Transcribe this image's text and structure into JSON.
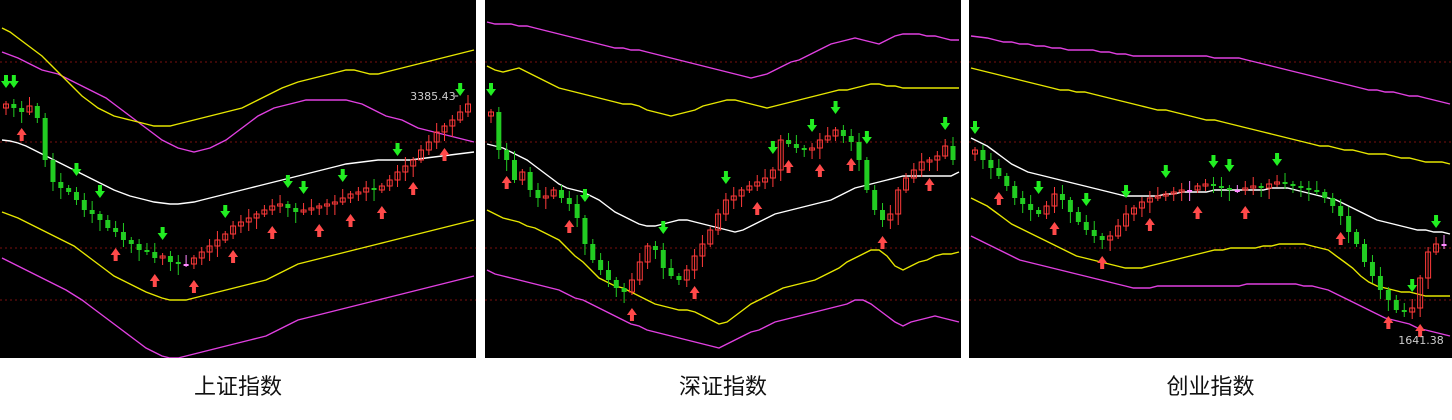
{
  "colors": {
    "background": "#000000",
    "outer_band": "#e040e0",
    "inner_band": "#e6e600",
    "middle_line": "#ffffff",
    "grid": "#7a1010",
    "candle_up": "#ff3a3a",
    "candle_down": "#22cc22",
    "candle_doji": "#ff88ff",
    "buy_arrow": "#ff4a4a",
    "sell_arrow": "#22ee22",
    "annotation": "#cccccc"
  },
  "icons": {
    "buy_signal": "up-arrow-icon",
    "sell_signal": "down-arrow-icon"
  },
  "chart_data": [
    {
      "type": "candlestick",
      "caption": "上证指数",
      "annotation": {
        "text": "3385.43",
        "index": 58
      },
      "inner_upper": [
        28,
        32,
        38,
        44,
        50,
        56,
        64,
        72,
        80,
        88,
        96,
        102,
        108,
        112,
        116,
        118,
        120,
        122,
        124,
        126,
        126,
        126,
        124,
        122,
        120,
        118,
        116,
        114,
        112,
        110,
        108,
        104,
        100,
        96,
        92,
        88,
        85,
        82,
        80,
        78,
        76,
        74,
        72,
        70,
        70,
        72,
        74,
        74,
        72,
        70,
        68,
        66,
        64,
        62,
        60,
        58,
        56,
        54,
        52,
        50
      ],
      "outer_upper": [
        52,
        55,
        58,
        62,
        66,
        70,
        72,
        74,
        78,
        82,
        86,
        90,
        94,
        98,
        104,
        110,
        116,
        122,
        128,
        134,
        140,
        144,
        148,
        150,
        152,
        150,
        148,
        144,
        140,
        134,
        128,
        122,
        116,
        112,
        108,
        106,
        104,
        102,
        100,
        100,
        100,
        100,
        100,
        100,
        102,
        104,
        108,
        112,
        116,
        118,
        120,
        124,
        128,
        130,
        132,
        134,
        136,
        138,
        140,
        142
      ],
      "middle": [
        140,
        141,
        143,
        146,
        150,
        154,
        158,
        162,
        166,
        170,
        174,
        178,
        182,
        186,
        190,
        193,
        196,
        198,
        200,
        202,
        203,
        204,
        204,
        203,
        202,
        200,
        198,
        196,
        194,
        192,
        190,
        188,
        186,
        184,
        182,
        180,
        178,
        176,
        174,
        172,
        170,
        168,
        166,
        164,
        163,
        162,
        161,
        160,
        160,
        160,
        160,
        160,
        159,
        158,
        157,
        156,
        155,
        154,
        153,
        152
      ],
      "inner_lower": [
        212,
        215,
        218,
        222,
        226,
        230,
        234,
        238,
        242,
        246,
        252,
        258,
        264,
        270,
        276,
        280,
        284,
        288,
        292,
        295,
        298,
        300,
        300,
        300,
        298,
        296,
        294,
        292,
        290,
        288,
        286,
        284,
        282,
        280,
        276,
        272,
        268,
        264,
        262,
        260,
        258,
        256,
        254,
        252,
        250,
        248,
        246,
        244,
        242,
        240,
        238,
        236,
        234,
        232,
        230,
        228,
        226,
        224,
        222,
        220
      ],
      "outer_lower": [
        258,
        262,
        266,
        270,
        274,
        278,
        282,
        286,
        290,
        295,
        300,
        306,
        312,
        318,
        324,
        330,
        336,
        342,
        348,
        352,
        356,
        358,
        358,
        356,
        354,
        352,
        350,
        348,
        346,
        344,
        342,
        340,
        338,
        336,
        332,
        328,
        324,
        320,
        318,
        316,
        314,
        312,
        310,
        308,
        306,
        304,
        302,
        300,
        298,
        296,
        294,
        292,
        290,
        288,
        286,
        284,
        282,
        280,
        278,
        276
      ],
      "closes": [
        104,
        108,
        112,
        106,
        118,
        160,
        182,
        188,
        192,
        200,
        210,
        214,
        220,
        228,
        232,
        240,
        244,
        250,
        252,
        258,
        256,
        262,
        264,
        264,
        258,
        252,
        246,
        240,
        234,
        226,
        222,
        218,
        214,
        210,
        206,
        204,
        208,
        212,
        210,
        208,
        206,
        204,
        202,
        198,
        194,
        192,
        188,
        190,
        186,
        180,
        172,
        166,
        160,
        150,
        142,
        132,
        126,
        120,
        112,
        104
      ],
      "buy_signals": [
        2,
        14,
        19,
        24,
        29,
        34,
        40,
        44,
        48,
        52,
        56
      ],
      "sell_signals": [
        0,
        1,
        9,
        12,
        20,
        28,
        36,
        38,
        43,
        50,
        58
      ]
    },
    {
      "type": "candlestick",
      "caption": "深证指数",
      "inner_upper": [
        66,
        70,
        72,
        70,
        68,
        72,
        76,
        80,
        84,
        88,
        90,
        92,
        94,
        96,
        98,
        100,
        102,
        104,
        104,
        106,
        110,
        112,
        114,
        116,
        114,
        112,
        110,
        106,
        104,
        102,
        100,
        100,
        102,
        104,
        106,
        108,
        106,
        104,
        102,
        100,
        98,
        96,
        94,
        92,
        90,
        90,
        88,
        86,
        84,
        84,
        86,
        86,
        88,
        88,
        88,
        88,
        88,
        88,
        88,
        88
      ],
      "outer_upper": [
        22,
        24,
        24,
        24,
        26,
        26,
        28,
        30,
        32,
        34,
        36,
        38,
        40,
        42,
        44,
        46,
        48,
        48,
        50,
        50,
        52,
        54,
        56,
        58,
        60,
        62,
        64,
        66,
        68,
        70,
        72,
        74,
        76,
        78,
        76,
        74,
        70,
        66,
        62,
        60,
        56,
        52,
        48,
        44,
        42,
        40,
        38,
        40,
        42,
        44,
        40,
        36,
        34,
        34,
        34,
        36,
        36,
        38,
        40,
        40
      ],
      "middle": [
        144,
        146,
        148,
        152,
        156,
        160,
        166,
        172,
        178,
        184,
        188,
        190,
        192,
        196,
        200,
        206,
        212,
        216,
        220,
        224,
        226,
        226,
        224,
        222,
        220,
        220,
        222,
        224,
        226,
        228,
        230,
        232,
        230,
        226,
        222,
        218,
        214,
        212,
        210,
        208,
        206,
        204,
        202,
        200,
        196,
        192,
        188,
        186,
        184,
        182,
        180,
        178,
        176,
        176,
        176,
        176,
        176,
        176,
        176,
        172
      ],
      "inner_lower": [
        210,
        214,
        218,
        220,
        222,
        226,
        228,
        232,
        236,
        240,
        248,
        256,
        262,
        270,
        278,
        282,
        286,
        288,
        292,
        296,
        300,
        304,
        306,
        308,
        310,
        310,
        312,
        316,
        320,
        324,
        322,
        316,
        310,
        304,
        300,
        296,
        292,
        288,
        286,
        284,
        282,
        280,
        276,
        272,
        268,
        262,
        258,
        254,
        250,
        250,
        256,
        266,
        270,
        266,
        262,
        260,
        256,
        254,
        254,
        252
      ],
      "outer_lower": [
        270,
        274,
        276,
        278,
        280,
        282,
        284,
        286,
        288,
        290,
        294,
        298,
        300,
        304,
        308,
        312,
        316,
        320,
        324,
        326,
        330,
        332,
        334,
        336,
        338,
        340,
        342,
        344,
        346,
        348,
        344,
        340,
        336,
        332,
        330,
        326,
        322,
        320,
        318,
        316,
        314,
        312,
        310,
        308,
        306,
        304,
        300,
        300,
        304,
        310,
        316,
        322,
        326,
        322,
        320,
        318,
        316,
        318,
        320,
        322
      ],
      "closes": [
        112,
        150,
        160,
        180,
        172,
        190,
        198,
        196,
        190,
        198,
        204,
        218,
        244,
        260,
        270,
        280,
        288,
        292,
        280,
        262,
        246,
        250,
        268,
        276,
        280,
        270,
        256,
        244,
        230,
        214,
        200,
        196,
        190,
        186,
        182,
        178,
        170,
        140,
        144,
        148,
        150,
        148,
        140,
        136,
        130,
        136,
        142,
        160,
        190,
        210,
        220,
        214,
        190,
        178,
        170,
        162,
        160,
        156,
        146,
        160
      ],
      "buy_signals": [
        2,
        10,
        18,
        26,
        34,
        38,
        42,
        46,
        50,
        56
      ],
      "sell_signals": [
        0,
        12,
        22,
        30,
        36,
        41,
        44,
        48,
        58
      ]
    },
    {
      "type": "candlestick",
      "caption": "创业指数",
      "annotation": {
        "text": "1641.38",
        "index": 54
      },
      "inner_upper": [
        68,
        70,
        72,
        74,
        76,
        78,
        80,
        82,
        84,
        86,
        88,
        90,
        90,
        92,
        92,
        94,
        96,
        98,
        100,
        102,
        104,
        106,
        108,
        110,
        110,
        112,
        114,
        116,
        118,
        120,
        120,
        122,
        124,
        126,
        128,
        130,
        132,
        134,
        136,
        138,
        140,
        142,
        144,
        146,
        146,
        148,
        150,
        150,
        152,
        154,
        154,
        154,
        156,
        158,
        158,
        160,
        162,
        162,
        162,
        164
      ],
      "outer_upper": [
        36,
        37,
        38,
        40,
        42,
        42,
        44,
        44,
        46,
        46,
        48,
        48,
        50,
        50,
        50,
        50,
        52,
        52,
        54,
        54,
        56,
        56,
        56,
        56,
        56,
        56,
        56,
        56,
        56,
        56,
        58,
        58,
        58,
        58,
        60,
        62,
        64,
        66,
        68,
        70,
        72,
        74,
        76,
        78,
        80,
        82,
        84,
        86,
        88,
        90,
        90,
        92,
        92,
        94,
        96,
        96,
        98,
        100,
        102,
        104
      ],
      "middle": [
        138,
        142,
        146,
        152,
        158,
        164,
        168,
        172,
        174,
        176,
        178,
        180,
        182,
        184,
        186,
        188,
        190,
        192,
        194,
        196,
        196,
        196,
        196,
        196,
        194,
        194,
        192,
        192,
        192,
        192,
        190,
        190,
        190,
        190,
        190,
        190,
        190,
        188,
        188,
        188,
        190,
        192,
        194,
        196,
        198,
        200,
        204,
        208,
        212,
        216,
        220,
        222,
        224,
        226,
        228,
        230,
        230,
        232,
        232,
        234
      ],
      "inner_lower": [
        198,
        202,
        206,
        212,
        218,
        224,
        228,
        232,
        236,
        240,
        244,
        248,
        252,
        256,
        258,
        260,
        262,
        264,
        266,
        268,
        268,
        268,
        266,
        264,
        262,
        260,
        258,
        256,
        254,
        252,
        250,
        250,
        248,
        248,
        248,
        248,
        246,
        246,
        244,
        244,
        244,
        244,
        246,
        248,
        250,
        256,
        262,
        268,
        276,
        282,
        286,
        288,
        290,
        292,
        292,
        294,
        296,
        296,
        296,
        296
      ],
      "outer_lower": [
        236,
        240,
        244,
        248,
        252,
        256,
        260,
        262,
        264,
        266,
        268,
        270,
        272,
        274,
        276,
        278,
        280,
        282,
        284,
        286,
        288,
        288,
        288,
        286,
        286,
        286,
        286,
        286,
        286,
        286,
        286,
        286,
        286,
        286,
        284,
        284,
        284,
        284,
        284,
        284,
        284,
        286,
        286,
        288,
        290,
        294,
        298,
        302,
        306,
        310,
        314,
        318,
        320,
        322,
        324,
        328,
        330,
        332,
        334,
        336
      ],
      "closes": [
        150,
        160,
        168,
        176,
        186,
        198,
        204,
        210,
        214,
        206,
        194,
        200,
        212,
        222,
        230,
        236,
        240,
        236,
        226,
        214,
        208,
        202,
        198,
        196,
        194,
        192,
        190,
        190,
        186,
        184,
        186,
        188,
        190,
        190,
        188,
        186,
        188,
        184,
        182,
        184,
        186,
        188,
        190,
        192,
        198,
        206,
        216,
        232,
        244,
        262,
        276,
        290,
        300,
        310,
        312,
        308,
        278,
        252,
        244,
        244
      ],
      "buy_signals": [
        3,
        10,
        16,
        22,
        28,
        34,
        46,
        52,
        56
      ],
      "sell_signals": [
        0,
        8,
        14,
        19,
        24,
        30,
        32,
        38,
        55,
        58
      ]
    }
  ]
}
